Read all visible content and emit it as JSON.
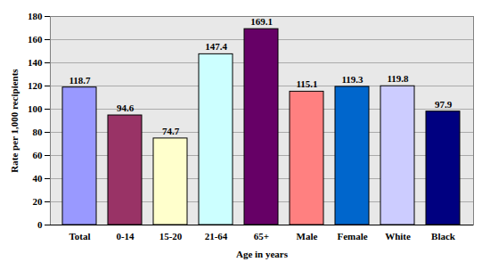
{
  "chart_data": {
    "type": "bar",
    "x_label": "Age in years",
    "y_label": "Rate per 1,000 recipients",
    "categories": [
      "Total",
      "0-14",
      "15-20",
      "21-64",
      "65+",
      "Male",
      "Female",
      "White",
      "Black"
    ],
    "values": [
      118.7,
      94.6,
      74.7,
      147.4,
      169.1,
      115.1,
      119.3,
      119.8,
      97.9
    ],
    "colors": [
      "#9999ff",
      "#993366",
      "#ffffcc",
      "#ccffff",
      "#660066",
      "#ff8080",
      "#0066cc",
      "#ccccff",
      "#000080"
    ],
    "ylim": [
      0,
      180
    ],
    "yticks": [
      0,
      20,
      40,
      60,
      80,
      100,
      120,
      140,
      160,
      180
    ],
    "grid": true,
    "data_labels": true
  }
}
